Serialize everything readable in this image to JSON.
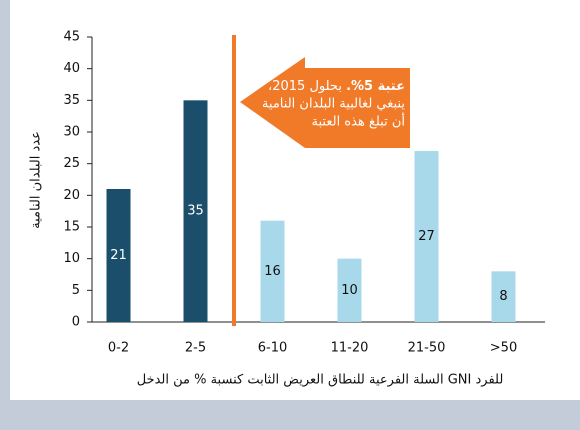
{
  "chart_data": {
    "type": "bar",
    "categories": [
      "0-2",
      "2-5",
      "6-10",
      "11-20",
      "21-50",
      ">50"
    ],
    "values": [
      21,
      35,
      16,
      10,
      27,
      8
    ],
    "colors": [
      "#1a4e6a",
      "#1a4e6a",
      "#a8d9ea",
      "#a8d9ea",
      "#a8d9ea",
      "#a8d9ea"
    ],
    "ylim": [
      0,
      45
    ],
    "yticks": [
      0,
      5,
      10,
      15,
      20,
      25,
      30,
      35,
      40,
      45
    ],
    "y_label": "عدد البلدان النامية",
    "x_label": "السلة الفرعية للنطاق العريض الثابت كنسبة % من الدخل GNI للفرد",
    "annotation": {
      "bold": "عتبة 5%.",
      "first": " بحلول 2015،",
      "lines": [
        "ينبغي لغالبية البلدان النامية",
        "أن تبلغ هذه العتبة"
      ]
    }
  }
}
